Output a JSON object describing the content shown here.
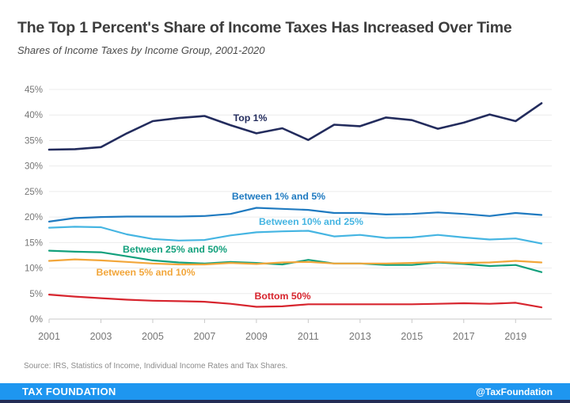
{
  "header": {
    "title": "The Top 1 Percent's Share of Income Taxes Has Increased Over Time",
    "subtitle": "Shares of Income Taxes by Income Group, 2001-2020"
  },
  "source_note": "Source: IRS, Statistics of Income, Individual Income Rates and Tax Shares.",
  "footer": {
    "brand": "TAX FOUNDATION",
    "handle": "@TaxFoundation",
    "bar_color": "#1e96f0",
    "strip_color": "#232c55"
  },
  "chart_data": {
    "type": "line",
    "title": "The Top 1 Percent's Share of Income Taxes Has Increased Over Time",
    "subtitle": "Shares of Income Taxes by Income Group, 2001-2020",
    "x": [
      2001,
      2002,
      2003,
      2004,
      2005,
      2006,
      2007,
      2008,
      2009,
      2010,
      2011,
      2012,
      2013,
      2014,
      2015,
      2016,
      2017,
      2018,
      2019,
      2020
    ],
    "x_tick_labels": [
      "2001",
      "2003",
      "2005",
      "2007",
      "2009",
      "2011",
      "2013",
      "2015",
      "2017",
      "2019"
    ],
    "ylabel": "",
    "xlabel": "",
    "ylim": [
      0,
      45
    ],
    "y_ticks": [
      0,
      5,
      10,
      15,
      20,
      25,
      30,
      35,
      40,
      45
    ],
    "y_tick_suffix": "%",
    "grid": "horizontal",
    "legend_position": "inline-labels",
    "series": [
      {
        "name": "Top 1%",
        "color": "#232c5d",
        "values": [
          33.2,
          33.3,
          33.7,
          36.4,
          38.8,
          39.4,
          39.8,
          38.0,
          36.4,
          37.4,
          35.1,
          38.1,
          37.8,
          39.5,
          39.0,
          37.3,
          38.5,
          40.1,
          38.8,
          42.3
        ]
      },
      {
        "name": "Between 1% and 5%",
        "color": "#1f7ac0",
        "values": [
          19.1,
          19.8,
          20.0,
          20.1,
          20.1,
          20.1,
          20.2,
          20.6,
          21.8,
          21.6,
          21.4,
          20.8,
          20.8,
          20.5,
          20.6,
          20.9,
          20.6,
          20.2,
          20.8,
          20.4
        ]
      },
      {
        "name": "Between 10% and 25%",
        "color": "#45b5e2",
        "values": [
          17.9,
          18.1,
          18.0,
          16.6,
          15.7,
          15.4,
          15.5,
          16.4,
          17.0,
          17.2,
          17.3,
          16.2,
          16.5,
          15.9,
          16.0,
          16.5,
          16.0,
          15.6,
          15.8,
          14.8
        ]
      },
      {
        "name": "Between 25% and 50%",
        "color": "#12a07c",
        "values": [
          13.4,
          13.2,
          13.1,
          12.3,
          11.5,
          11.1,
          10.9,
          11.2,
          11.0,
          10.7,
          11.6,
          10.9,
          10.9,
          10.6,
          10.6,
          11.1,
          10.8,
          10.4,
          10.6,
          9.2
        ]
      },
      {
        "name": "Between 5% and 10%",
        "color": "#f2a63a",
        "values": [
          11.4,
          11.7,
          11.5,
          11.2,
          10.9,
          10.7,
          10.7,
          11.0,
          10.8,
          11.1,
          11.2,
          10.9,
          10.9,
          10.9,
          11.0,
          11.2,
          11.0,
          11.1,
          11.4,
          11.1
        ]
      },
      {
        "name": "Bottom 50%",
        "color": "#d7252e",
        "values": [
          4.8,
          4.4,
          4.1,
          3.8,
          3.6,
          3.5,
          3.4,
          3.0,
          2.4,
          2.5,
          2.9,
          2.9,
          2.9,
          2.9,
          2.9,
          3.0,
          3.1,
          3.0,
          3.2,
          2.3
        ]
      }
    ]
  }
}
